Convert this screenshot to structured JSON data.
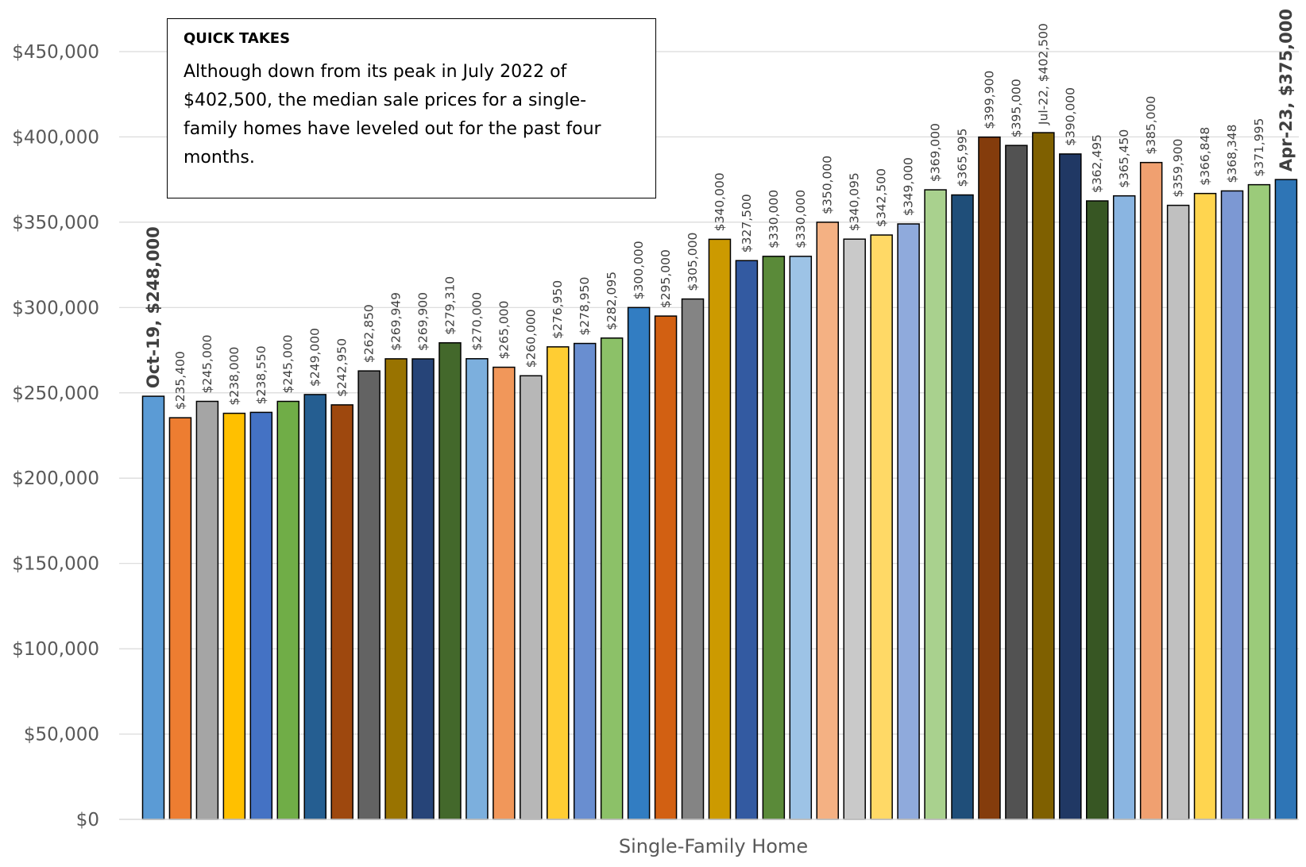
{
  "quick_takes": {
    "title": "QUICK TAKES",
    "body": "Although down from its peak in July 2022 of $402,500, the median sale prices for a single-family homes have leveled out for the past four months."
  },
  "chart_data": {
    "type": "bar",
    "xlabel": "Single-Family Home",
    "ylabel": "",
    "ylim": [
      0,
      450000
    ],
    "yticks": [
      0,
      50000,
      100000,
      150000,
      200000,
      250000,
      300000,
      350000,
      400000,
      450000
    ],
    "ytick_labels": [
      "$0",
      "$50,000",
      "$100,000",
      "$150,000",
      "$200,000",
      "$250,000",
      "$300,000",
      "$350,000",
      "$400,000",
      "$450,000"
    ],
    "grid": true,
    "series": [
      {
        "values": [
          248000,
          235400,
          245000,
          238000,
          238550,
          245000,
          249000,
          242950,
          262850,
          269949,
          269900,
          279310,
          270000,
          265000,
          260000,
          276950,
          278950,
          282095,
          300000,
          295000,
          305000,
          340000,
          327500,
          330000,
          330000,
          350000,
          340095,
          342500,
          349000,
          369000,
          365995,
          399900,
          395000,
          402500,
          390000,
          362495,
          365450,
          385000,
          359900,
          366848,
          368348,
          371995,
          375000
        ],
        "labels": [
          "Oct-19, $248,000",
          "$235,400",
          "$245,000",
          "$238,000",
          "$238,550",
          "$245,000",
          "$249,000",
          "$242,950",
          "$262,850",
          "$269,949",
          "$269,900",
          "$279,310",
          "$270,000",
          "$265,000",
          "$260,000",
          "$276,950",
          "$278,950",
          "$282,095",
          "$300,000",
          "$295,000",
          "$305,000",
          "$340,000",
          "$327,500",
          "$330,000",
          "$330,000",
          "$350,000",
          "$340,095",
          "$342,500",
          "$349,000",
          "$369,000",
          "$365,995",
          "$399,900",
          "$395,000",
          "Jul-22, $402,500",
          "$390,000",
          "$362,495",
          "$365,450",
          "$385,000",
          "$359,900",
          "$366,848",
          "$368,348",
          "$371,995",
          "Apr-23, $375,000"
        ],
        "bold": [
          true,
          false,
          false,
          false,
          false,
          false,
          false,
          false,
          false,
          false,
          false,
          false,
          false,
          false,
          false,
          false,
          false,
          false,
          false,
          false,
          false,
          false,
          false,
          false,
          false,
          false,
          false,
          false,
          false,
          false,
          false,
          false,
          false,
          false,
          false,
          false,
          false,
          false,
          false,
          false,
          false,
          false,
          true
        ],
        "colors": [
          "#5B9BD5",
          "#ED7D31",
          "#A5A5A5",
          "#FFC000",
          "#4472C4",
          "#70AD47",
          "#255E91",
          "#9E480E",
          "#636363",
          "#997300",
          "#264478",
          "#43682B",
          "#7CAFDD",
          "#F1975A",
          "#B7B7B7",
          "#FFCD33",
          "#698ED0",
          "#8CC168",
          "#327DC2",
          "#D26012",
          "#848484",
          "#CC9A00",
          "#335AA1",
          "#5A8A39",
          "#9DC3E6",
          "#F4B183",
          "#C9C9C9",
          "#FFD966",
          "#8FAADC",
          "#A9D18E",
          "#1F4E79",
          "#843C0C",
          "#525252",
          "#7F6000",
          "#203864",
          "#375623",
          "#8AB5E1",
          "#F0A070",
          "#C0C0C0",
          "#FFD54F",
          "#7C98D3",
          "#9BCB7A",
          "#2E75B6"
        ]
      }
    ]
  }
}
